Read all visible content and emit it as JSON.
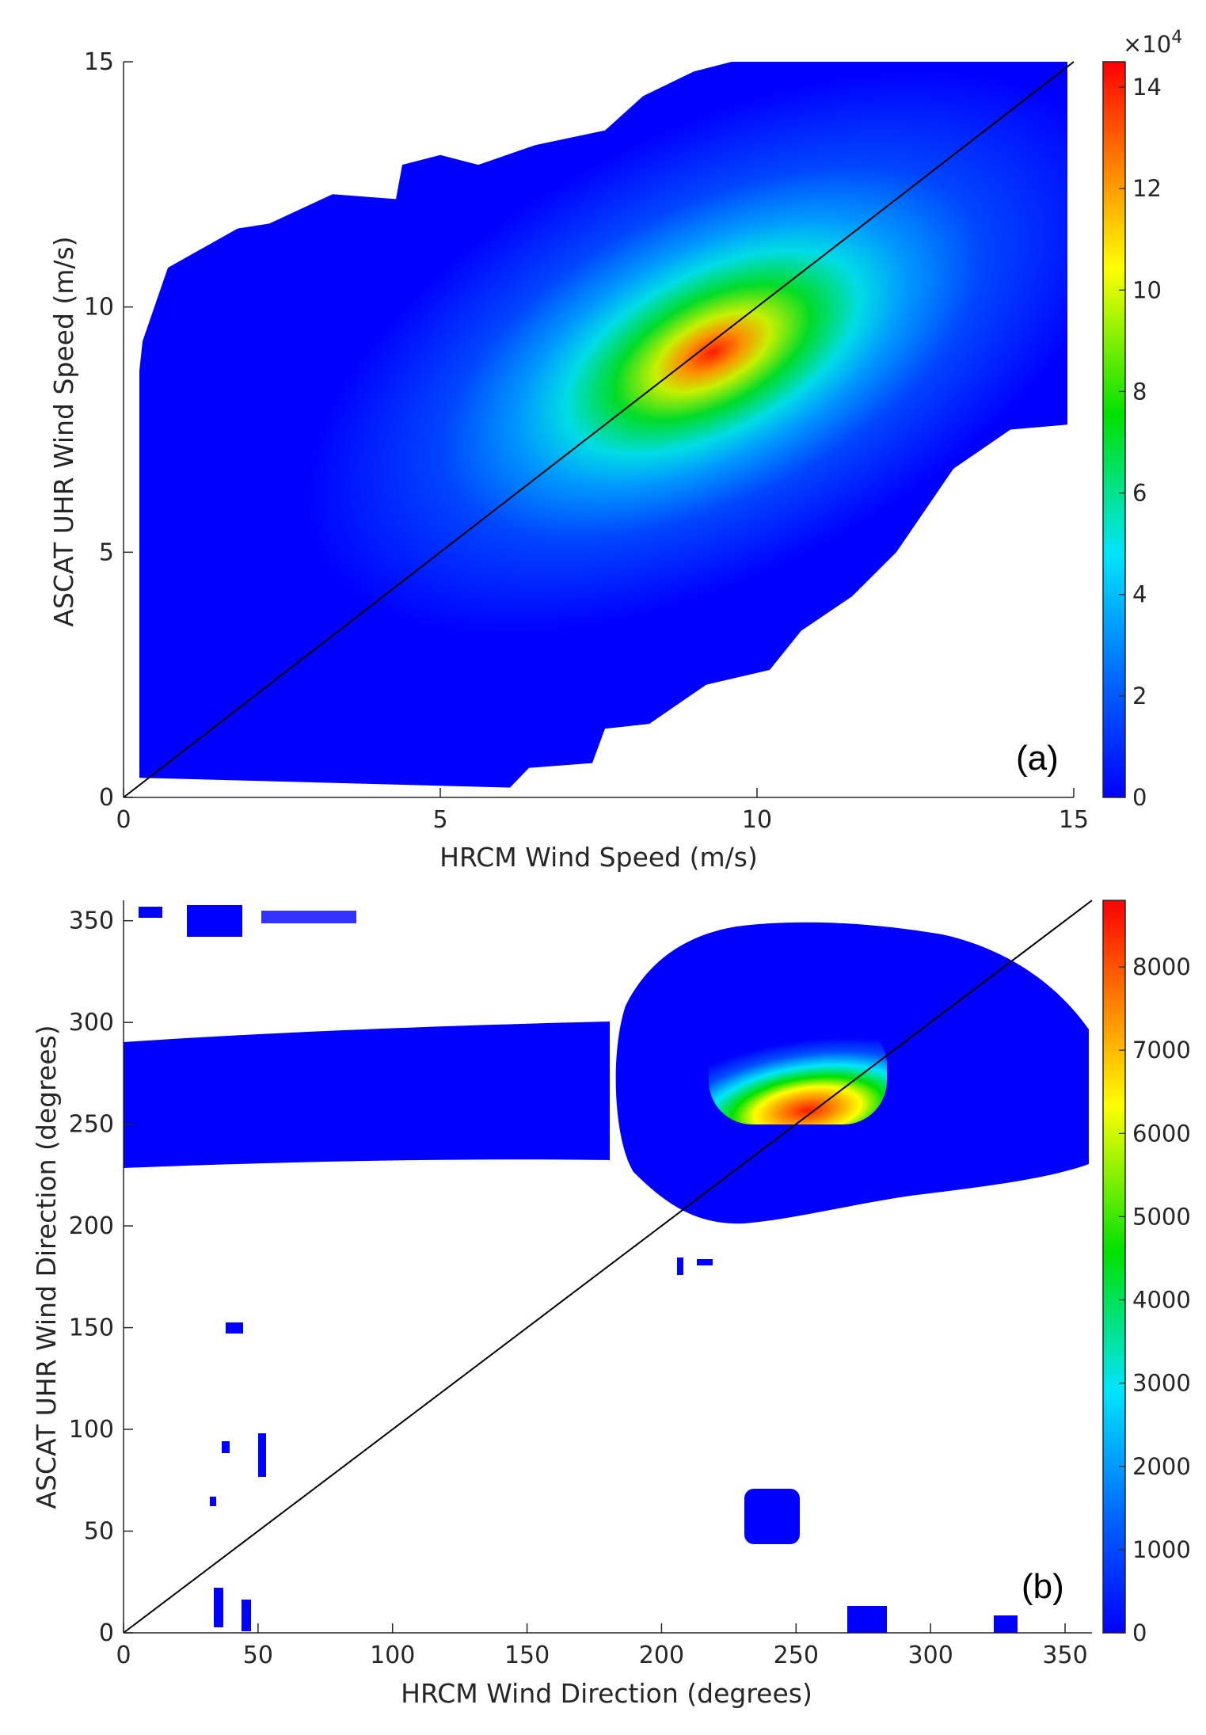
{
  "chart_data": [
    {
      "type": "heatmap",
      "panel_label": "(a)",
      "xlabel": "HRCM  Wind Speed (m/s)",
      "ylabel": "ASCAT UHR Wind Speed (m/s)",
      "xlim": [
        0,
        15
      ],
      "ylim": [
        0,
        15
      ],
      "xticks": [
        0,
        5,
        10,
        15
      ],
      "yticks": [
        0,
        5,
        10,
        15
      ],
      "reference_line": "y = x",
      "peak": {
        "x": 9.3,
        "y": 9.0,
        "value": 145000
      },
      "support_upper": [
        [
          0.25,
          8.7
        ],
        [
          0.3,
          9.3
        ],
        [
          0.7,
          10.8
        ],
        [
          1.8,
          11.6
        ],
        [
          2.3,
          11.7
        ],
        [
          3.3,
          12.3
        ],
        [
          4.3,
          12.2
        ],
        [
          4.4,
          12.9
        ],
        [
          5.0,
          13.1
        ],
        [
          5.6,
          12.9
        ],
        [
          6.5,
          13.3
        ],
        [
          7.6,
          13.6
        ],
        [
          8.2,
          14.3
        ],
        [
          9.0,
          14.8
        ],
        [
          9.6,
          15.0
        ],
        [
          14.9,
          15.0
        ]
      ],
      "support_lower": [
        [
          0.25,
          0.4
        ],
        [
          6.1,
          0.2
        ],
        [
          6.4,
          0.6
        ],
        [
          7.4,
          0.7
        ],
        [
          7.6,
          1.4
        ],
        [
          8.3,
          1.5
        ],
        [
          9.2,
          2.3
        ],
        [
          10.2,
          2.6
        ],
        [
          10.7,
          3.4
        ],
        [
          11.5,
          4.1
        ],
        [
          12.2,
          5.0
        ],
        [
          13.1,
          6.7
        ],
        [
          14.0,
          7.5
        ],
        [
          14.9,
          7.6
        ]
      ],
      "colorbar": {
        "min": 0,
        "max": 145000,
        "ticks": [
          0,
          2,
          4,
          6,
          8,
          10,
          12,
          14
        ],
        "multiplier_label": "×10",
        "multiplier_exponent": "4"
      }
    },
    {
      "type": "heatmap",
      "panel_label": "(b)",
      "xlabel": "HRCM Wind Direction (degrees)",
      "ylabel": "ASCAT UHR Wind Direction (degrees)",
      "xlim": [
        0,
        360
      ],
      "ylim": [
        0,
        360
      ],
      "xticks": [
        0,
        50,
        100,
        150,
        200,
        250,
        300,
        350
      ],
      "yticks": [
        0,
        50,
        100,
        150,
        200,
        250,
        300,
        350
      ],
      "reference_line": "y = x",
      "peak": {
        "x": 255,
        "y": 255,
        "value": 8800
      },
      "colorbar": {
        "min": 0,
        "max": 8800,
        "ticks": [
          0,
          1000,
          2000,
          3000,
          4000,
          5000,
          6000,
          7000,
          8000
        ]
      }
    }
  ],
  "colors": {
    "low": "#0000ff",
    "cyan": "#00e5ff",
    "green": "#00e100",
    "yellow": "#ffff00",
    "orange": "#ff8000",
    "high": "#ff0000",
    "reference_line": "#000000"
  }
}
